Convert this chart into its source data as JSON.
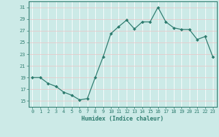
{
  "x": [
    0,
    1,
    2,
    3,
    4,
    5,
    6,
    7,
    8,
    9,
    10,
    11,
    12,
    13,
    14,
    15,
    16,
    17,
    18,
    19,
    20,
    21,
    22,
    23
  ],
  "y": [
    19,
    19,
    18,
    17.5,
    16.5,
    16,
    15.2,
    15.4,
    19,
    22.5,
    26.5,
    27.7,
    28.8,
    27.3,
    28.5,
    28.5,
    31,
    28.5,
    27.5,
    27.2,
    27.2,
    25.5,
    26,
    22.5
  ],
  "line_color": "#2d7b6e",
  "marker": "D",
  "marker_size": 2,
  "bg_color": "#cceae7",
  "grid_color_major": "#e8c8c8",
  "grid_color_minor": "#ffffff",
  "tick_color": "#2d7b6e",
  "label_color": "#2d7b6e",
  "xlabel": "Humidex (Indice chaleur)",
  "ylim": [
    14,
    32
  ],
  "yticks": [
    15,
    17,
    19,
    21,
    23,
    25,
    27,
    29,
    31
  ],
  "xlim": [
    -0.5,
    23.5
  ],
  "xticks": [
    0,
    1,
    2,
    3,
    4,
    5,
    6,
    7,
    8,
    9,
    10,
    11,
    12,
    13,
    14,
    15,
    16,
    17,
    18,
    19,
    20,
    21,
    22,
    23
  ]
}
